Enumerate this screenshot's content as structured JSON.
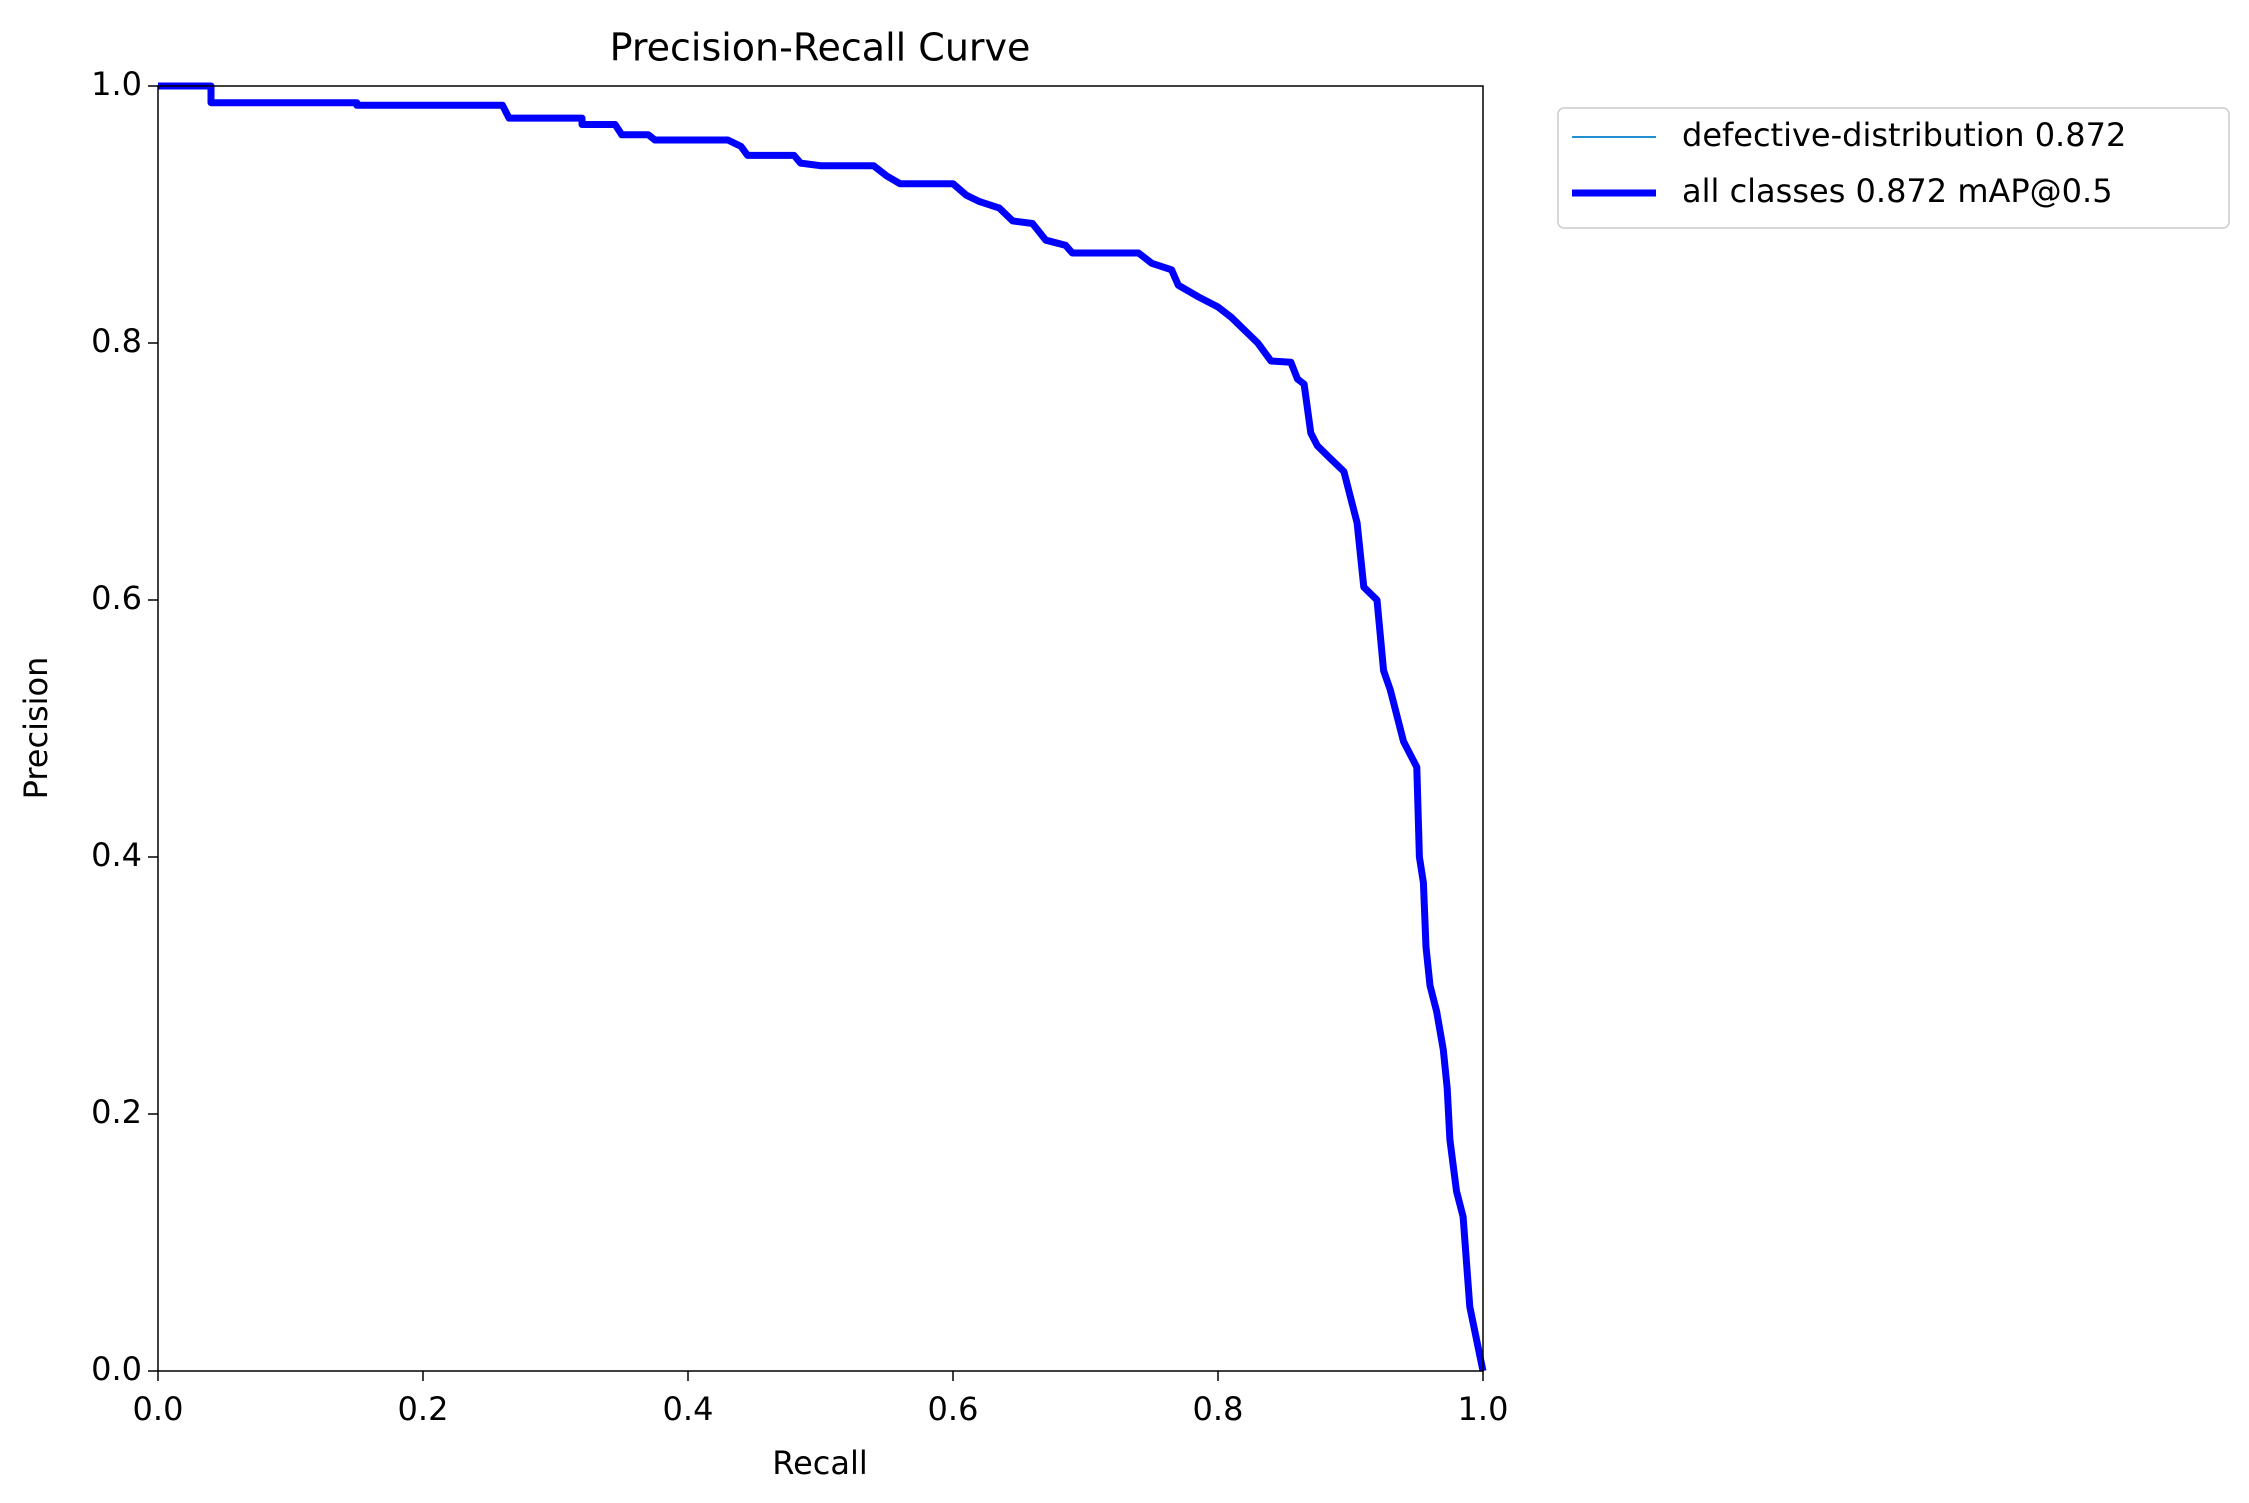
{
  "chart_data": {
    "type": "line",
    "title": "Precision-Recall Curve",
    "xlabel": "Recall",
    "ylabel": "Precision",
    "xlim": [
      0,
      1
    ],
    "ylim": [
      0,
      1
    ],
    "xticks": [
      {
        "value": 0,
        "label": "0.0"
      },
      0.2,
      0.4,
      0.6,
      0.8,
      {
        "value": 1,
        "label": "1.0"
      }
    ],
    "yticks": [
      {
        "value": 0,
        "label": "0.0"
      },
      0.2,
      0.4,
      0.6,
      0.8,
      {
        "value": 1,
        "label": "1.0"
      }
    ],
    "legend": "upper left outside",
    "x": [
      0,
      0.04,
      0.04,
      0.15,
      0.15,
      0.26,
      0.265,
      0.32,
      0.32,
      0.345,
      0.35,
      0.37,
      0.375,
      0.43,
      0.44,
      0.445,
      0.48,
      0.485,
      0.5,
      0.54,
      0.55,
      0.56,
      0.6,
      0.61,
      0.62,
      0.635,
      0.645,
      0.66,
      0.67,
      0.685,
      0.69,
      0.74,
      0.75,
      0.765,
      0.77,
      0.785,
      0.8,
      0.81,
      0.82,
      0.83,
      0.84,
      0.855,
      0.86,
      0.865,
      0.87,
      0.875,
      0.885,
      0.895,
      0.9,
      0.905,
      0.91,
      0.92,
      0.925,
      0.93,
      0.935,
      0.94,
      0.945,
      0.95,
      0.952,
      0.955,
      0.957,
      0.96,
      0.965,
      0.97,
      0.973,
      0.975,
      0.98,
      0.985,
      0.99,
      1
    ],
    "series": [
      {
        "name": "defective-distribution 0.872",
        "color": "#1f8fcf",
        "width": 2,
        "values": [
          1,
          1,
          0.987,
          0.987,
          0.985,
          0.985,
          0.975,
          0.975,
          0.97,
          0.97,
          0.962,
          0.962,
          0.958,
          0.958,
          0.953,
          0.946,
          0.946,
          0.94,
          0.938,
          0.938,
          0.93,
          0.924,
          0.924,
          0.915,
          0.91,
          0.905,
          0.895,
          0.893,
          0.88,
          0.876,
          0.87,
          0.87,
          0.862,
          0.857,
          0.845,
          0.836,
          0.828,
          0.82,
          0.81,
          0.8,
          0.786,
          0.785,
          0.772,
          0.768,
          0.73,
          0.72,
          0.71,
          0.7,
          0.68,
          0.66,
          0.61,
          0.6,
          0.545,
          0.53,
          0.51,
          0.49,
          0.48,
          0.47,
          0.4,
          0.38,
          0.33,
          0.3,
          0.28,
          0.25,
          0.22,
          0.18,
          0.14,
          0.12,
          0.05,
          0
        ]
      },
      {
        "name": "all classes 0.872 mAP@0.5",
        "color": "#0000ff",
        "width": 7,
        "values": [
          1,
          1,
          0.987,
          0.987,
          0.985,
          0.985,
          0.975,
          0.975,
          0.97,
          0.97,
          0.962,
          0.962,
          0.958,
          0.958,
          0.953,
          0.946,
          0.946,
          0.94,
          0.938,
          0.938,
          0.93,
          0.924,
          0.924,
          0.915,
          0.91,
          0.905,
          0.895,
          0.893,
          0.88,
          0.876,
          0.87,
          0.87,
          0.862,
          0.857,
          0.845,
          0.836,
          0.828,
          0.82,
          0.81,
          0.8,
          0.786,
          0.785,
          0.772,
          0.768,
          0.73,
          0.72,
          0.71,
          0.7,
          0.68,
          0.66,
          0.61,
          0.6,
          0.545,
          0.53,
          0.51,
          0.49,
          0.48,
          0.47,
          0.4,
          0.38,
          0.33,
          0.3,
          0.28,
          0.25,
          0.22,
          0.18,
          0.14,
          0.12,
          0.05,
          0
        ]
      }
    ]
  }
}
